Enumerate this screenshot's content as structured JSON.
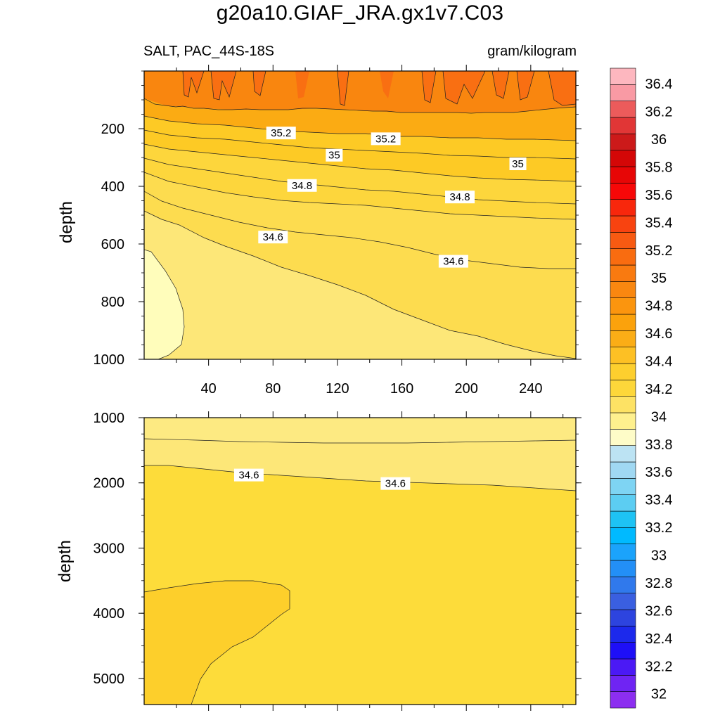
{
  "chart_data": {
    "type": "contour",
    "title": "g20a10.GIAF_JRA.gx1v7.C03",
    "variable_label": "SALT, PAC_44S-18S",
    "units_label": "gram/kilogram",
    "panels": [
      {
        "name": "upper",
        "ylabel": "depth",
        "xlim": [
          0,
          268
        ],
        "ylim": [
          0,
          1000
        ],
        "y_inverted": true,
        "xticks": [
          "40",
          "80",
          "120",
          "160",
          "200",
          "240"
        ],
        "yticks": [
          "200",
          "400",
          "600",
          "800",
          "1000"
        ],
        "contour_labels": [
          {
            "text": "35.2",
            "x": 85,
            "y": 215
          },
          {
            "text": "35.2",
            "x": 150,
            "y": 235
          },
          {
            "text": "35",
            "x": 118,
            "y": 292
          },
          {
            "text": "35",
            "x": 232,
            "y": 322
          },
          {
            "text": "34.8",
            "x": 98,
            "y": 397
          },
          {
            "text": "34.8",
            "x": 196,
            "y": 437
          },
          {
            "text": "34.6",
            "x": 80,
            "y": 576
          },
          {
            "text": "34.6",
            "x": 192,
            "y": 660
          }
        ]
      },
      {
        "name": "lower",
        "ylabel": "depth",
        "xlim": [
          0,
          268
        ],
        "ylim": [
          1000,
          5400
        ],
        "y_inverted": true,
        "xticks": [],
        "yticks": [
          "1000",
          "2000",
          "3000",
          "4000",
          "5000"
        ],
        "contour_labels": [
          {
            "text": "34.6",
            "x": 65,
            "y": 1880
          },
          {
            "text": "34.6",
            "x": 156,
            "y": 2010
          }
        ]
      }
    ],
    "colorbar": {
      "labels": [
        "32",
        "32.2",
        "32.4",
        "32.6",
        "32.8",
        "33",
        "33.2",
        "33.4",
        "33.6",
        "33.8",
        "34",
        "34.2",
        "34.4",
        "34.6",
        "34.8",
        "35",
        "35.2",
        "35.4",
        "35.6",
        "35.8",
        "36",
        "36.2",
        "36.4"
      ],
      "colors": [
        "#8c2ef0",
        "#6f24f3",
        "#4b19f5",
        "#1e0ff7",
        "#1c29ec",
        "#2d44df",
        "#3a5fe0",
        "#3079ec",
        "#238ff6",
        "#1ba3fb",
        "#00baff",
        "#1ec3f4",
        "#5ccdf2",
        "#7ed4f3",
        "#a0d8f2",
        "#bce3f3",
        "#fefcc8",
        "#fef08e",
        "#fde264",
        "#fdd73a",
        "#fdcf2e",
        "#fdc024",
        "#fbad16",
        "#fba20c",
        "#fb950e",
        "#f98710",
        "#f97a10",
        "#f96c10",
        "#f85a12",
        "#f84310",
        "#f8270c",
        "#f70808",
        "#e70606",
        "#d40707",
        "#cc1a1a",
        "#e13636",
        "#ec5b5b",
        "#f99aa4",
        "#fdb7bf"
      ]
    }
  }
}
